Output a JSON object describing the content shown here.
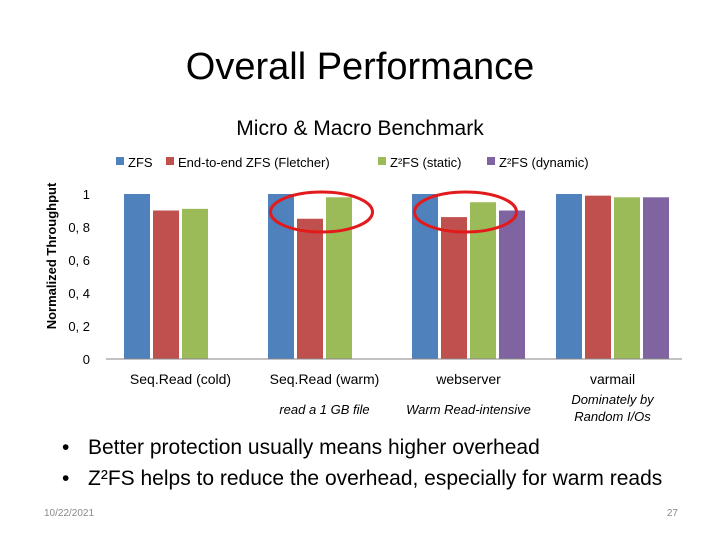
{
  "slide": {
    "title": "Overall Performance",
    "bullets": [
      "Better protection usually means higher overhead",
      "Z²FS helps to reduce the overhead, especially for warm reads"
    ],
    "footer_date": "10/22/2021",
    "page_number": "27"
  },
  "chart_data": {
    "type": "bar",
    "title": "Micro & Macro Benchmark",
    "ylabel": "Normalized Throughput",
    "xlabel": "",
    "ylim": [
      0,
      1
    ],
    "yticks": [
      "0",
      "0, 2",
      "0, 4",
      "0, 6",
      "0, 8",
      "1"
    ],
    "legend_position": "top",
    "grid": false,
    "categories": [
      "Seq.Read (cold)",
      "Seq.Read (warm)",
      "webserver",
      "varmail"
    ],
    "category_notes": [
      "",
      "read a 1 GB file",
      "Warm Read-intensive",
      "Dominately by Random I/Os"
    ],
    "series": [
      {
        "name": "ZFS",
        "color": "#4F81BD",
        "values": [
          1.0,
          1.0,
          1.0,
          1.0
        ]
      },
      {
        "name": "End-to-end ZFS (Fletcher)",
        "color": "#C0504D",
        "values": [
          0.9,
          0.85,
          0.86,
          0.99
        ]
      },
      {
        "name": "Z²FS (static)",
        "color": "#9BBB59",
        "values": [
          0.91,
          0.98,
          0.95,
          0.98
        ]
      },
      {
        "name": "Z²FS (dynamic)",
        "color": "#8064A2",
        "values": [
          null,
          null,
          0.9,
          0.98
        ]
      }
    ],
    "annotations": [
      {
        "shape": "ellipse",
        "color": "#E31A1C",
        "category": "Seq.Read (warm)"
      },
      {
        "shape": "ellipse",
        "color": "#E31A1C",
        "category": "webserver"
      }
    ]
  }
}
